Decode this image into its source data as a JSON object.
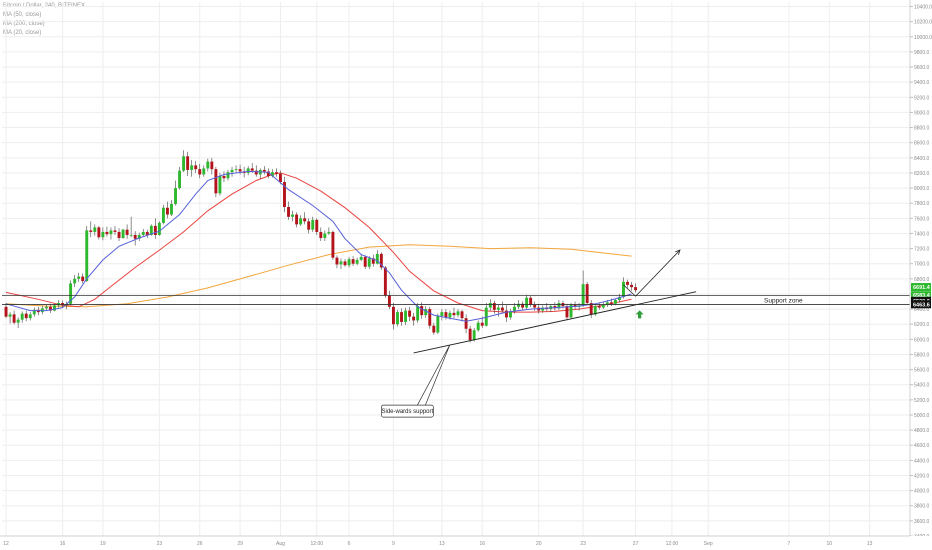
{
  "header": {
    "symbol_line": "Bitcoin / Dollar, 240, BITFINEX",
    "indicators": [
      "MA (50, close)",
      "MA (200, close)",
      "MA (20, close)"
    ]
  },
  "colors": {
    "up": "#2eb82e",
    "down": "#b3141b",
    "ma50": "#e8433f",
    "ma200": "#f2a63c",
    "ma20": "#5560d8",
    "grid": "#eeeeee",
    "badge_green": "#2eb82e",
    "badge_black": "#111111",
    "arrow_green": "#2e9d3a"
  },
  "chart_data": {
    "type": "candlestick",
    "y_ticks": [
      3400,
      3600,
      3800,
      4000,
      4200,
      4400,
      4600,
      4800,
      5000,
      5200,
      5400,
      5600,
      5800,
      6000,
      6200,
      6400,
      6600,
      6800,
      7000,
      7200,
      7400,
      7600,
      7800,
      8000,
      8200,
      8400,
      8600,
      8800,
      9000,
      9200,
      9400,
      9600,
      9800,
      10000,
      10200,
      10400
    ],
    "ylim": [
      3400,
      10460
    ],
    "x_labels": [
      {
        "t": 0,
        "label": "12"
      },
      {
        "t": 14,
        "label": "16"
      },
      {
        "t": 24,
        "label": "19"
      },
      {
        "t": 38,
        "label": "23"
      },
      {
        "t": 48,
        "label": "26"
      },
      {
        "t": 58,
        "label": "29"
      },
      {
        "t": 68,
        "label": "Aug"
      },
      {
        "t": 77,
        "label": "12:00"
      },
      {
        "t": 85,
        "label": "6"
      },
      {
        "t": 96,
        "label": "9"
      },
      {
        "t": 108,
        "label": "13"
      },
      {
        "t": 118,
        "label": "16"
      },
      {
        "t": 132,
        "label": "20"
      },
      {
        "t": 143,
        "label": "23"
      },
      {
        "t": 156,
        "label": "27"
      },
      {
        "t": 165,
        "label": "12:00"
      },
      {
        "t": 174,
        "label": "Sep"
      },
      {
        "t": 194,
        "label": "7"
      },
      {
        "t": 204,
        "label": "10"
      },
      {
        "t": 214,
        "label": "13"
      }
    ],
    "xlim": [
      -1,
      224
    ],
    "candles": [
      [
        6430,
        6480,
        6280,
        6300
      ],
      [
        6300,
        6360,
        6210,
        6330
      ],
      [
        6330,
        6380,
        6200,
        6220
      ],
      [
        6220,
        6290,
        6150,
        6260
      ],
      [
        6260,
        6370,
        6220,
        6340
      ],
      [
        6340,
        6380,
        6240,
        6280
      ],
      [
        6280,
        6360,
        6250,
        6330
      ],
      [
        6330,
        6420,
        6300,
        6390
      ],
      [
        6390,
        6430,
        6320,
        6360
      ],
      [
        6360,
        6440,
        6330,
        6410
      ],
      [
        6410,
        6460,
        6380,
        6430
      ],
      [
        6430,
        6470,
        6350,
        6380
      ],
      [
        6380,
        6470,
        6370,
        6450
      ],
      [
        6450,
        6520,
        6420,
        6480
      ],
      [
        6480,
        6510,
        6420,
        6450
      ],
      [
        6450,
        6500,
        6400,
        6470
      ],
      [
        6470,
        6780,
        6450,
        6740
      ],
      [
        6740,
        6850,
        6690,
        6800
      ],
      [
        6800,
        6880,
        6760,
        6830
      ],
      [
        6830,
        6870,
        6740,
        6770
      ],
      [
        6770,
        7500,
        6760,
        7440
      ],
      [
        7440,
        7560,
        7350,
        7420
      ],
      [
        7420,
        7520,
        7370,
        7480
      ],
      [
        7480,
        7500,
        7320,
        7350
      ],
      [
        7350,
        7480,
        7310,
        7420
      ],
      [
        7420,
        7490,
        7360,
        7390
      ],
      [
        7390,
        7480,
        7320,
        7440
      ],
      [
        7440,
        7500,
        7380,
        7420
      ],
      [
        7420,
        7470,
        7300,
        7340
      ],
      [
        7340,
        7460,
        7330,
        7450
      ],
      [
        7450,
        7520,
        7330,
        7380
      ],
      [
        7380,
        7620,
        7350,
        7380
      ],
      [
        7380,
        7430,
        7240,
        7330
      ],
      [
        7330,
        7410,
        7300,
        7380
      ],
      [
        7380,
        7460,
        7360,
        7420
      ],
      [
        7420,
        7450,
        7340,
        7380
      ],
      [
        7380,
        7520,
        7370,
        7500
      ],
      [
        7500,
        7600,
        7330,
        7380
      ],
      [
        7380,
        7560,
        7370,
        7540
      ],
      [
        7540,
        7780,
        7520,
        7740
      ],
      [
        7740,
        7820,
        7600,
        7650
      ],
      [
        7650,
        7840,
        7630,
        7790
      ],
      [
        7790,
        8100,
        7770,
        8000
      ],
      [
        8000,
        8280,
        7980,
        8230
      ],
      [
        8230,
        8500,
        8210,
        8420
      ],
      [
        8420,
        8480,
        8160,
        8240
      ],
      [
        8240,
        8370,
        8150,
        8300
      ],
      [
        8300,
        8360,
        8200,
        8250
      ],
      [
        8250,
        8320,
        8130,
        8180
      ],
      [
        8180,
        8300,
        8150,
        8260
      ],
      [
        8260,
        8390,
        8220,
        8350
      ],
      [
        8350,
        8400,
        8180,
        8250
      ],
      [
        8250,
        8280,
        7880,
        7930
      ],
      [
        7930,
        8200,
        7900,
        8160
      ],
      [
        8160,
        8220,
        8080,
        8130
      ],
      [
        8130,
        8240,
        8100,
        8210
      ],
      [
        8210,
        8280,
        8150,
        8240
      ],
      [
        8240,
        8300,
        8200,
        8250
      ],
      [
        8250,
        8310,
        8180,
        8220
      ],
      [
        8220,
        8280,
        8140,
        8200
      ],
      [
        8200,
        8290,
        8170,
        8260
      ],
      [
        8260,
        8330,
        8200,
        8230
      ],
      [
        8230,
        8300,
        8150,
        8180
      ],
      [
        8180,
        8260,
        8120,
        8240
      ],
      [
        8240,
        8290,
        8180,
        8220
      ],
      [
        8220,
        8260,
        8130,
        8160
      ],
      [
        8160,
        8250,
        8140,
        8210
      ],
      [
        8210,
        8260,
        8150,
        8190
      ],
      [
        8190,
        8230,
        8050,
        8080
      ],
      [
        8080,
        8150,
        7680,
        7750
      ],
      [
        7750,
        7820,
        7580,
        7620
      ],
      [
        7620,
        7700,
        7560,
        7650
      ],
      [
        7650,
        7680,
        7480,
        7520
      ],
      [
        7520,
        7640,
        7500,
        7600
      ],
      [
        7600,
        7680,
        7520,
        7560
      ],
      [
        7560,
        7600,
        7400,
        7450
      ],
      [
        7450,
        7620,
        7420,
        7580
      ],
      [
        7580,
        7600,
        7380,
        7420
      ],
      [
        7420,
        7480,
        7300,
        7340
      ],
      [
        7340,
        7440,
        7300,
        7400
      ],
      [
        7400,
        7480,
        7380,
        7420
      ],
      [
        7420,
        7440,
        7050,
        7080
      ],
      [
        7080,
        7110,
        6940,
        6990
      ],
      [
        6990,
        7070,
        6930,
        7030
      ],
      [
        7030,
        7060,
        6960,
        6980
      ],
      [
        6980,
        7090,
        6950,
        7060
      ],
      [
        7060,
        7100,
        6970,
        7000
      ],
      [
        7000,
        7080,
        6980,
        7050
      ],
      [
        7050,
        7130,
        7030,
        7090
      ],
      [
        7090,
        7110,
        6930,
        6960
      ],
      [
        6960,
        7100,
        6930,
        7070
      ],
      [
        7070,
        7120,
        6960,
        7000
      ],
      [
        7000,
        7180,
        6990,
        7130
      ],
      [
        7130,
        7150,
        6920,
        6950
      ],
      [
        6950,
        6970,
        6550,
        6580
      ],
      [
        6580,
        6640,
        6400,
        6430
      ],
      [
        6430,
        6480,
        6130,
        6200
      ],
      [
        6200,
        6390,
        6170,
        6360
      ],
      [
        6360,
        6410,
        6180,
        6230
      ],
      [
        6230,
        6420,
        6190,
        6380
      ],
      [
        6380,
        6430,
        6240,
        6300
      ],
      [
        6300,
        6350,
        6180,
        6250
      ],
      [
        6250,
        6480,
        6220,
        6440
      ],
      [
        6440,
        6490,
        6270,
        6320
      ],
      [
        6320,
        6440,
        6280,
        6400
      ],
      [
        6400,
        6430,
        6140,
        6180
      ],
      [
        6180,
        6220,
        6060,
        6090
      ],
      [
        6090,
        6340,
        6070,
        6310
      ],
      [
        6310,
        6400,
        6250,
        6360
      ],
      [
        6360,
        6400,
        6260,
        6290
      ],
      [
        6290,
        6380,
        6260,
        6350
      ],
      [
        6350,
        6420,
        6280,
        6320
      ],
      [
        6320,
        6400,
        6290,
        6370
      ],
      [
        6370,
        6390,
        6240,
        6280
      ],
      [
        6280,
        6330,
        6080,
        6140
      ],
      [
        6140,
        6180,
        5960,
        5990
      ],
      [
        5990,
        6150,
        5970,
        6120
      ],
      [
        6120,
        6250,
        6100,
        6220
      ],
      [
        6220,
        6300,
        6150,
        6180
      ],
      [
        6180,
        6480,
        6170,
        6420
      ],
      [
        6420,
        6530,
        6380,
        6480
      ],
      [
        6480,
        6510,
        6340,
        6390
      ],
      [
        6390,
        6460,
        6300,
        6420
      ],
      [
        6420,
        6500,
        6360,
        6380
      ],
      [
        6380,
        6450,
        6230,
        6290
      ],
      [
        6290,
        6400,
        6260,
        6370
      ],
      [
        6370,
        6480,
        6340,
        6430
      ],
      [
        6430,
        6520,
        6400,
        6470
      ],
      [
        6470,
        6500,
        6390,
        6420
      ],
      [
        6420,
        6590,
        6400,
        6550
      ],
      [
        6550,
        6580,
        6430,
        6460
      ],
      [
        6460,
        6500,
        6380,
        6420
      ],
      [
        6420,
        6470,
        6340,
        6380
      ],
      [
        6380,
        6450,
        6350,
        6420
      ],
      [
        6420,
        6480,
        6370,
        6400
      ],
      [
        6400,
        6460,
        6360,
        6440
      ],
      [
        6440,
        6490,
        6380,
        6410
      ],
      [
        6410,
        6520,
        6390,
        6480
      ],
      [
        6480,
        6510,
        6410,
        6440
      ],
      [
        6440,
        6470,
        6250,
        6290
      ],
      [
        6290,
        6480,
        6270,
        6460
      ],
      [
        6460,
        6500,
        6400,
        6430
      ],
      [
        6430,
        6480,
        6380,
        6450
      ],
      [
        6450,
        6910,
        6430,
        6730
      ],
      [
        6730,
        6760,
        6450,
        6480
      ],
      [
        6480,
        6520,
        6280,
        6330
      ],
      [
        6330,
        6470,
        6310,
        6440
      ],
      [
        6440,
        6480,
        6390,
        6420
      ],
      [
        6420,
        6490,
        6400,
        6460
      ],
      [
        6460,
        6520,
        6430,
        6490
      ],
      [
        6490,
        6540,
        6440,
        6470
      ],
      [
        6470,
        6540,
        6450,
        6520
      ],
      [
        6520,
        6600,
        6490,
        6560
      ],
      [
        6560,
        6820,
        6540,
        6760
      ],
      [
        6760,
        6790,
        6680,
        6720
      ],
      [
        6720,
        6760,
        6640,
        6690
      ],
      [
        6690,
        6740,
        6620,
        6650
      ]
    ],
    "ma20": [
      [
        0,
        6470
      ],
      [
        6,
        6380
      ],
      [
        10,
        6380
      ],
      [
        14,
        6420
      ],
      [
        17,
        6560
      ],
      [
        20,
        6800
      ],
      [
        24,
        7050
      ],
      [
        28,
        7230
      ],
      [
        33,
        7340
      ],
      [
        38,
        7430
      ],
      [
        43,
        7650
      ],
      [
        47,
        7920
      ],
      [
        50,
        8100
      ],
      [
        54,
        8180
      ],
      [
        60,
        8220
      ],
      [
        65,
        8210
      ],
      [
        70,
        7980
      ],
      [
        76,
        7770
      ],
      [
        81,
        7560
      ],
      [
        84,
        7330
      ],
      [
        88,
        7120
      ],
      [
        92,
        7040
      ],
      [
        95,
        6880
      ],
      [
        98,
        6650
      ],
      [
        102,
        6430
      ],
      [
        106,
        6320
      ],
      [
        110,
        6280
      ],
      [
        114,
        6240
      ],
      [
        118,
        6280
      ],
      [
        124,
        6360
      ],
      [
        130,
        6400
      ],
      [
        136,
        6420
      ],
      [
        142,
        6440
      ],
      [
        146,
        6470
      ],
      [
        150,
        6520
      ],
      [
        155,
        6600
      ]
    ],
    "ma50": [
      [
        0,
        6620
      ],
      [
        8,
        6530
      ],
      [
        14,
        6450
      ],
      [
        18,
        6430
      ],
      [
        22,
        6530
      ],
      [
        26,
        6700
      ],
      [
        32,
        6950
      ],
      [
        38,
        7180
      ],
      [
        44,
        7420
      ],
      [
        50,
        7700
      ],
      [
        56,
        7920
      ],
      [
        62,
        8100
      ],
      [
        66,
        8180
      ],
      [
        68,
        8200
      ],
      [
        72,
        8130
      ],
      [
        78,
        7960
      ],
      [
        84,
        7740
      ],
      [
        90,
        7480
      ],
      [
        96,
        7150
      ],
      [
        100,
        6900
      ],
      [
        106,
        6640
      ],
      [
        112,
        6480
      ],
      [
        118,
        6380
      ],
      [
        124,
        6360
      ],
      [
        130,
        6360
      ],
      [
        136,
        6370
      ],
      [
        142,
        6400
      ],
      [
        148,
        6450
      ],
      [
        155,
        6530
      ]
    ],
    "ma200": [
      [
        0,
        6470
      ],
      [
        10,
        6440
      ],
      [
        20,
        6430
      ],
      [
        30,
        6470
      ],
      [
        40,
        6560
      ],
      [
        50,
        6680
      ],
      [
        60,
        6830
      ],
      [
        70,
        6980
      ],
      [
        80,
        7120
      ],
      [
        90,
        7220
      ],
      [
        100,
        7250
      ],
      [
        110,
        7230
      ],
      [
        120,
        7200
      ],
      [
        130,
        7210
      ],
      [
        140,
        7190
      ],
      [
        150,
        7130
      ],
      [
        155,
        7100
      ]
    ],
    "badges": [
      {
        "value": "6691.4",
        "price": 6691.4,
        "color": "badge_green"
      },
      {
        "value": "6583.4",
        "price": 6583.4,
        "color": "badge_green"
      },
      {
        "value": "6509.0",
        "price": 6509.0,
        "color": "badge_black"
      },
      {
        "value": "6463.6",
        "price": 6463.6,
        "color": "badge_black"
      }
    ],
    "support_zone": {
      "label": "Support zone",
      "upper": 6580,
      "lower": 6460
    },
    "trendline": {
      "from": [
        101,
        5820
      ],
      "to": [
        171,
        6630
      ]
    },
    "arrow_up": {
      "from": [
        156,
        6570
      ],
      "to": [
        167,
        7180
      ]
    },
    "path_down": {
      "from": [
        153,
        6720
      ],
      "to": [
        156,
        6570
      ]
    },
    "callout": {
      "label": "Side-wards support",
      "anchor": [
        110,
        5930
      ],
      "box_t": [
        93,
        5130
      ]
    },
    "green_arrow": {
      "t": 157,
      "price": 6330
    }
  }
}
